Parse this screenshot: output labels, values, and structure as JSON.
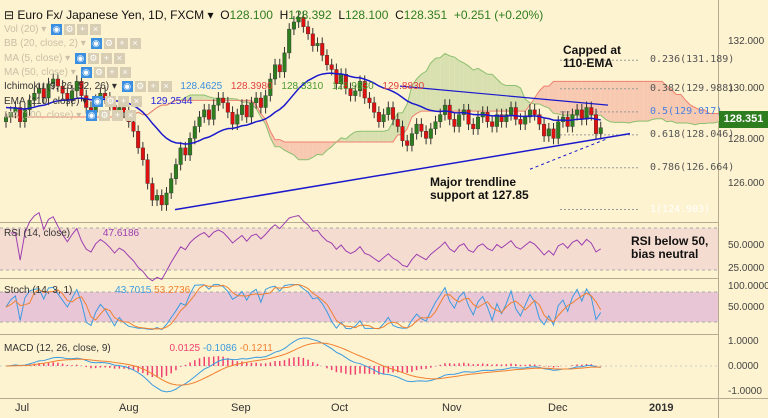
{
  "header": {
    "title": "Euro Fx/ Japanese Yen, 1D, FXCM",
    "o_label": "O",
    "o": "128.100",
    "h_label": "H",
    "h": "128.392",
    "l_label": "L",
    "l": "128.100",
    "c_label": "C",
    "c": "128.351",
    "change": "+0.251 (+0.20%)"
  },
  "studies": [
    {
      "label": "Vol (20)",
      "ghost": true
    },
    {
      "label": "BB (20, close, 2)",
      "ghost": true
    },
    {
      "label": "MA (5, close)",
      "ghost": true
    },
    {
      "label": "MA (50, close)",
      "ghost": true
    },
    {
      "label": "Ichimoku (9, 26, 52, 26)",
      "ghost": false,
      "values": [
        {
          "v": "128.4625",
          "c": "#3b8fe0"
        },
        {
          "v": "128.3980",
          "c": "#e04040"
        },
        {
          "v": "128.3310",
          "c": "#4a9a30"
        },
        {
          "v": "128.9530",
          "c": "#4a9a30"
        },
        {
          "v": "129.8830",
          "c": "#e04040"
        }
      ]
    },
    {
      "label": "EMA (110, close)",
      "ghost": false,
      "values": [
        {
          "v": "129.2544",
          "c": "#2222dd"
        }
      ]
    },
    {
      "label": "MA (100, close)",
      "ghost": true
    }
  ],
  "annotations": {
    "capped": "Capped at\n110-EMA",
    "trendline": "Major trendline\nsupport at 127.85",
    "rsi": "RSI below 50,\nbias neutral"
  },
  "fib": [
    {
      "label": "0.236(131.189)",
      "v": 131.189
    },
    {
      "label": "0.382(129.988)",
      "v": 129.988
    },
    {
      "label": "0.5(129.017)",
      "v": 129.017
    },
    {
      "label": "0.618(128.046)",
      "v": 128.046
    },
    {
      "label": "0.786(126.664)",
      "v": 126.664
    },
    {
      "label": "1(124.903)",
      "v": 124.903
    }
  ],
  "last_price": "128.351",
  "price_axis": [
    "132.000",
    "130.000",
    "128.000",
    "126.000"
  ],
  "rsi": {
    "label": "RSI (14, close)",
    "value": "47.6186",
    "axis": [
      "50.0000",
      "25.0000"
    ]
  },
  "stoch": {
    "label": "Stoch (14, 3, 1)",
    "k": "43.7015",
    "d": "53.2736",
    "axis": [
      "100.0000",
      "50.0000"
    ]
  },
  "macd": {
    "label": "MACD (12, 26, close, 9)",
    "hist": "0.0125",
    "macd": "-0.1086",
    "signal": "-0.1211",
    "axis": [
      "1.0000",
      "0.0000",
      "-1.0000"
    ]
  },
  "dates": [
    "Jul",
    "Aug",
    "Sep",
    "Oct",
    "Nov",
    "Dec",
    "2019"
  ],
  "colors": {
    "up": "#2e7d1f",
    "down": "#e01010",
    "ema": "#1a1acc",
    "trend": "#1a1acc",
    "rsi": "#9c3fb0",
    "k": "#3b9be0",
    "d": "#f08030",
    "hist": "#f04070"
  },
  "chart_data": {
    "type": "candlestick",
    "title": "Euro Fx/ Japanese Yen, 1D, FXCM",
    "ylim": [
      124.4,
      133.8
    ],
    "closes": [
      128.8,
      129.0,
      129.2,
      128.6,
      129.1,
      129.5,
      129.8,
      130.0,
      129.6,
      130.2,
      130.4,
      130.1,
      129.8,
      129.5,
      129.9,
      130.3,
      129.7,
      129.2,
      129.0,
      129.5,
      129.8,
      129.6,
      129.3,
      128.9,
      129.2,
      129.0,
      128.6,
      128.2,
      127.5,
      127.0,
      126.0,
      125.3,
      125.5,
      125.1,
      125.6,
      126.2,
      126.8,
      127.5,
      127.2,
      127.9,
      128.4,
      128.8,
      129.1,
      128.7,
      129.3,
      129.6,
      129.4,
      129.0,
      128.5,
      128.9,
      129.3,
      128.8,
      129.4,
      129.6,
      129.2,
      129.7,
      130.4,
      131.0,
      130.7,
      131.5,
      132.5,
      132.8,
      133.0,
      132.6,
      132.3,
      131.8,
      131.9,
      131.4,
      131.0,
      130.8,
      130.2,
      130.6,
      130.0,
      129.7,
      129.9,
      130.3,
      129.6,
      129.4,
      129.0,
      128.6,
      128.9,
      129.2,
      128.7,
      128.4,
      127.8,
      127.6,
      128.1,
      128.5,
      128.2,
      127.9,
      128.3,
      128.6,
      128.9,
      129.3,
      128.7,
      128.4,
      128.9,
      129.1,
      128.5,
      128.3,
      128.8,
      129.0,
      128.6,
      128.4,
      128.9,
      128.6,
      128.9,
      129.2,
      128.7,
      128.5,
      128.8,
      129.1,
      128.9,
      128.5,
      128.0,
      128.3,
      127.9,
      128.6,
      128.8,
      128.4,
      128.9,
      129.1,
      128.7,
      129.2,
      128.9,
      128.1,
      128.35
    ]
  }
}
